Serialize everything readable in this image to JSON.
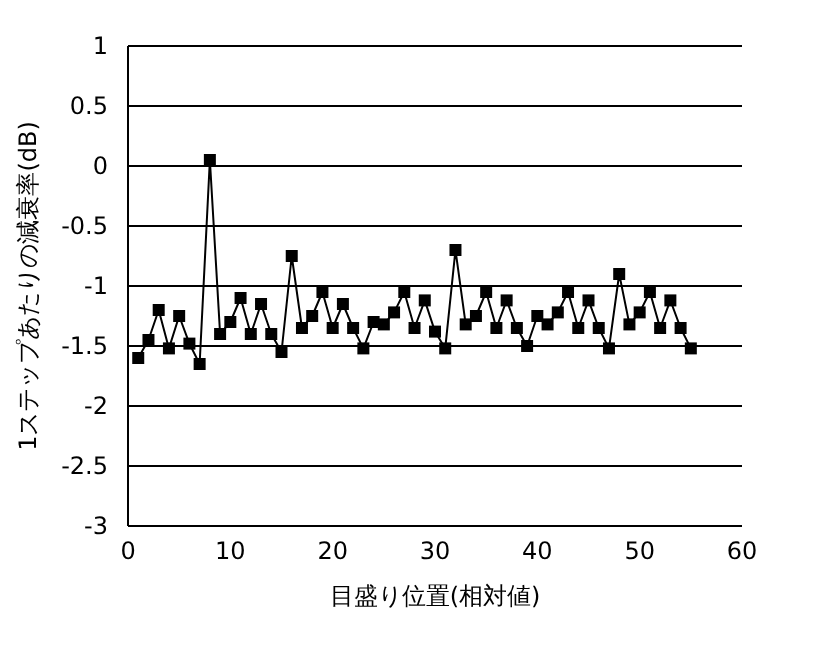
{
  "chart_data": {
    "type": "line",
    "xlabel": "目盛り位置(相対値)",
    "ylabel": "1ステップあたりの減衰率(dB)",
    "x": [
      1,
      2,
      3,
      4,
      5,
      6,
      7,
      8,
      9,
      10,
      11,
      12,
      13,
      14,
      15,
      16,
      17,
      18,
      19,
      20,
      21,
      22,
      23,
      24,
      25,
      26,
      27,
      28,
      29,
      30,
      31,
      32,
      33,
      34,
      35,
      36,
      37,
      38,
      39,
      40,
      41,
      42,
      43,
      44,
      45,
      46,
      47,
      48,
      49,
      50,
      51,
      52,
      53,
      54,
      55
    ],
    "series": [
      {
        "color": "#000000",
        "values": [
          -1.6,
          -1.45,
          -1.2,
          -1.52,
          -1.25,
          -1.48,
          -1.65,
          0.05,
          -1.4,
          -1.3,
          -1.1,
          -1.4,
          -1.15,
          -1.4,
          -1.55,
          -0.75,
          -1.35,
          -1.25,
          -1.05,
          -1.35,
          -1.15,
          -1.35,
          -1.52,
          -1.3,
          -1.32,
          -1.22,
          -1.05,
          -1.35,
          -1.12,
          -1.38,
          -1.52,
          -0.7,
          -1.32,
          -1.25,
          -1.05,
          -1.35,
          -1.12,
          -1.35,
          -1.5,
          -1.25,
          -1.32,
          -1.22,
          -1.05,
          -1.35,
          -1.12,
          -1.35,
          -1.52,
          -0.9,
          -1.32,
          -1.22,
          -1.05,
          -1.35,
          -1.12,
          -1.35,
          -1.52
        ]
      }
    ],
    "xlim": [
      0,
      60
    ],
    "xticks": [
      0,
      10,
      20,
      30,
      40,
      50,
      60
    ],
    "ylim": [
      -3,
      1
    ],
    "yticks": [
      -3,
      -2.5,
      -2,
      -1.5,
      -1,
      -0.5,
      0,
      0.5,
      1
    ],
    "grid": "y",
    "marker": "square",
    "line_style": "solid"
  }
}
